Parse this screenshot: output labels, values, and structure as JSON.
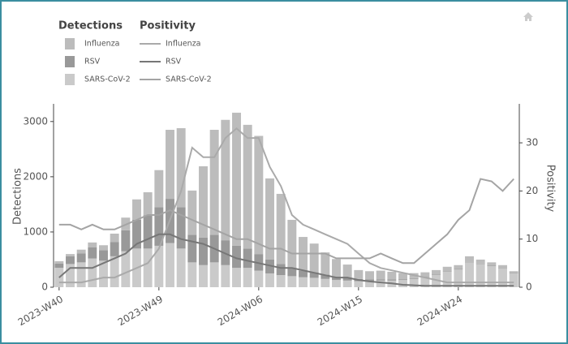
{
  "chart_data": {
    "type": "bar_line",
    "bar_legend_title": "Detections",
    "line_legend_title": "Positivity",
    "y_label": "Detections",
    "y2_label": "Positivity",
    "categories": [
      "2023-W40",
      null,
      null,
      null,
      null,
      null,
      null,
      null,
      null,
      "2023-W49",
      null,
      null,
      null,
      null,
      null,
      null,
      null,
      null,
      "2024-W06",
      null,
      null,
      null,
      null,
      null,
      null,
      null,
      null,
      "2024-W15",
      null,
      null,
      null,
      null,
      null,
      null,
      null,
      null,
      "2024-W24",
      null,
      null,
      null,
      null,
      null
    ],
    "ylim": [
      0,
      3320
    ],
    "yticks": [
      0,
      1000,
      2000,
      3000
    ],
    "y2lim": [
      0,
      38.1
    ],
    "y2ticks": [
      0,
      10,
      20,
      30
    ],
    "series": [
      {
        "name": "Influenza",
        "color": "#bcbcbc",
        "values": [
          40,
          40,
          70,
          90,
          90,
          150,
          230,
          370,
          420,
          670,
          1250,
          1430,
          800,
          1290,
          1900,
          2180,
          2410,
          2240,
          2140,
          1470,
          1270,
          870,
          610,
          520,
          400,
          320,
          240,
          160,
          150,
          160,
          140,
          110,
          90,
          80,
          80,
          80,
          70,
          100,
          70,
          60,
          50,
          30
        ]
      },
      {
        "name": "RSV",
        "color": "#999999",
        "values": [
          80,
          140,
          160,
          200,
          190,
          260,
          380,
          520,
          600,
          700,
          800,
          750,
          500,
          500,
          500,
          450,
          400,
          350,
          300,
          250,
          200,
          150,
          120,
          100,
          80,
          60,
          50,
          40,
          30,
          20,
          20,
          15,
          15,
          10,
          10,
          10,
          10,
          10,
          10,
          10,
          10,
          10
        ]
      },
      {
        "name": "SARS-CoV-2",
        "color": "#cacaca",
        "values": [
          350,
          420,
          450,
          520,
          480,
          560,
          650,
          700,
          700,
          750,
          800,
          700,
          450,
          400,
          450,
          400,
          350,
          350,
          300,
          250,
          220,
          200,
          180,
          170,
          150,
          130,
          120,
          110,
          110,
          120,
          120,
          130,
          150,
          180,
          220,
          280,
          320,
          450,
          420,
          380,
          340,
          250
        ]
      }
    ],
    "line_series": [
      {
        "name": "Influenza",
        "color": "#aaaaaa",
        "axis": "y2",
        "values": [
          1,
          1,
          1,
          1.5,
          2,
          2,
          3,
          4,
          5,
          8,
          14,
          20,
          29,
          27,
          27,
          31,
          33,
          31,
          31,
          25,
          21,
          15,
          13,
          12,
          11,
          10,
          9,
          7,
          5,
          4,
          3.5,
          3,
          2.5,
          2,
          1.5,
          1,
          1,
          1,
          1,
          1,
          1,
          1
        ]
      },
      {
        "name": "RSV",
        "color": "#777777",
        "axis": "y2",
        "values": [
          2,
          4,
          4,
          4,
          5,
          6,
          7,
          9,
          10,
          11,
          11,
          10,
          9.5,
          9,
          8,
          7,
          6,
          5.5,
          5,
          4.5,
          4,
          4,
          3.5,
          3,
          2.5,
          2,
          2,
          1.5,
          1.2,
          1,
          0.8,
          0.5,
          0.4,
          0.3,
          0.3,
          0.3,
          0.3,
          0.3,
          0.3,
          0.3,
          0.3,
          0.3
        ]
      },
      {
        "name": "SARS-CoV-2",
        "color": "#a4a4a4",
        "axis": "y2",
        "values": [
          13,
          13,
          12,
          13,
          12,
          12,
          13,
          14,
          15,
          15,
          16,
          15,
          14,
          13,
          12,
          11,
          10,
          10,
          9,
          8,
          8,
          7,
          7,
          7,
          7,
          6,
          6,
          6,
          6,
          7,
          6,
          5,
          5,
          7,
          9,
          11,
          14,
          16,
          22.5,
          22,
          20,
          22.5
        ]
      }
    ]
  }
}
